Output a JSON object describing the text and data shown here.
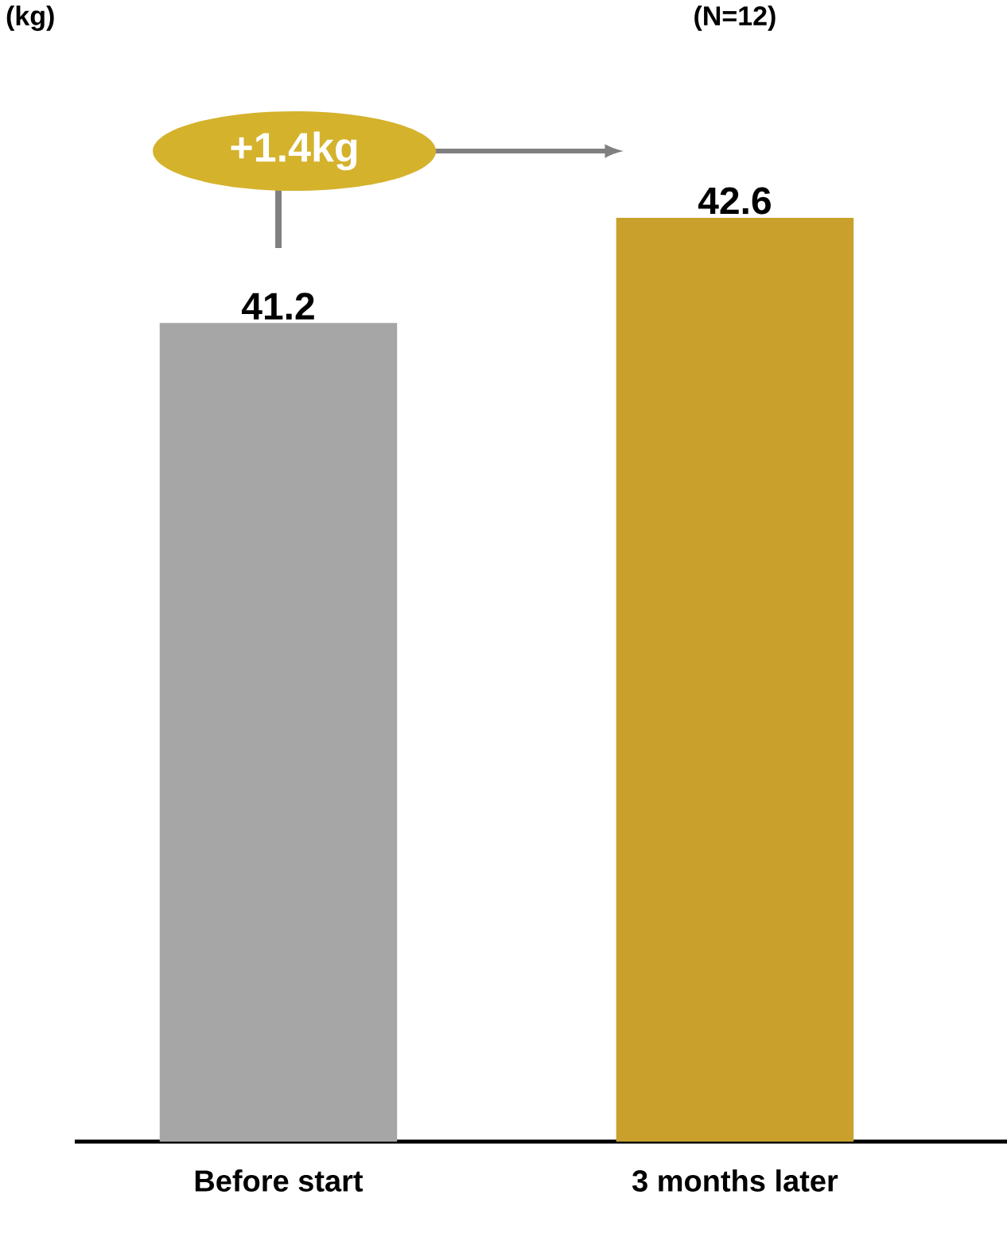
{
  "chart_data": {
    "type": "bar",
    "categories": [
      "Before start",
      "3 months later"
    ],
    "values": [
      41.2,
      42.6
    ],
    "colors": [
      "#a6a6a6",
      "#c9a02c"
    ],
    "ylim": [
      30.3,
      42.6
    ],
    "data_labels": true,
    "annotations": [
      "(kg)",
      "+1.4kg",
      "(N=12)"
    ]
  }
}
